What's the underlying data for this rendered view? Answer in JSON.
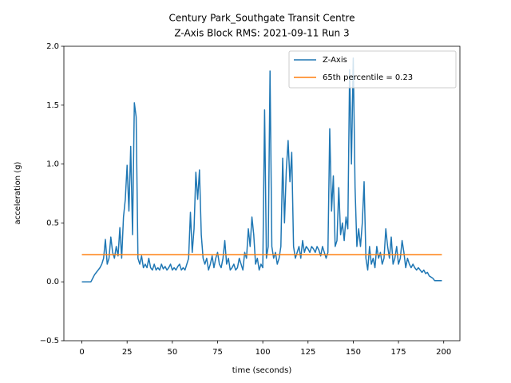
{
  "chart_data": {
    "type": "line",
    "title": [
      "Century Park_Southgate Transit Centre",
      "Z-Axis Block RMS: 2021-09-11 Run 3"
    ],
    "xlabel": "time (seconds)",
    "ylabel": "acceleration (g)",
    "xlim": [
      -9.95,
      208.95
    ],
    "ylim": [
      -0.5,
      2.0
    ],
    "xticks": [
      0,
      25,
      50,
      75,
      100,
      125,
      150,
      175,
      200
    ],
    "yticks": [
      {
        "value": -0.5,
        "label": "−0.5"
      },
      {
        "value": 0,
        "label": "0.0"
      },
      {
        "value": 0.5,
        "label": "0.5"
      },
      {
        "value": 1,
        "label": "1.0"
      },
      {
        "value": 1.5,
        "label": "1.5"
      },
      {
        "value": 2,
        "label": "2.0"
      }
    ],
    "legend": "upper right",
    "series": [
      {
        "name": "Z-Axis",
        "color": "#1f77b4",
        "x": [
          0,
          1,
          2,
          3,
          4,
          5,
          6,
          7,
          8,
          9,
          10,
          11,
          12,
          13,
          14,
          15,
          16,
          17,
          18,
          19,
          20,
          21,
          22,
          23,
          24,
          25,
          26,
          27,
          28,
          29,
          30,
          31,
          32,
          33,
          34,
          35,
          36,
          37,
          38,
          39,
          40,
          41,
          42,
          43,
          44,
          45,
          46,
          47,
          48,
          49,
          50,
          51,
          52,
          53,
          54,
          55,
          56,
          57,
          58,
          59,
          60,
          61,
          62,
          63,
          64,
          65,
          66,
          67,
          68,
          69,
          70,
          71,
          72,
          73,
          74,
          75,
          76,
          77,
          78,
          79,
          80,
          81,
          82,
          83,
          84,
          85,
          86,
          87,
          88,
          89,
          90,
          91,
          92,
          93,
          94,
          95,
          96,
          97,
          98,
          99,
          100,
          101,
          102,
          103,
          104,
          105,
          106,
          107,
          108,
          109,
          110,
          111,
          112,
          113,
          114,
          115,
          116,
          117,
          118,
          119,
          120,
          121,
          122,
          123,
          124,
          125,
          126,
          127,
          128,
          129,
          130,
          131,
          132,
          133,
          134,
          135,
          136,
          137,
          138,
          139,
          140,
          141,
          142,
          143,
          144,
          145,
          146,
          147,
          148,
          149,
          150,
          151,
          152,
          153,
          154,
          155,
          156,
          157,
          158,
          159,
          160,
          161,
          162,
          163,
          164,
          165,
          166,
          167,
          168,
          169,
          170,
          171,
          172,
          173,
          174,
          175,
          176,
          177,
          178,
          179,
          180,
          181,
          182,
          183,
          184,
          185,
          186,
          187,
          188,
          189,
          190,
          191,
          192,
          193,
          194,
          195,
          196,
          197,
          198,
          199
        ],
        "values": [
          0,
          0,
          0,
          0,
          0,
          0,
          0.03,
          0.06,
          0.08,
          0.1,
          0.12,
          0.15,
          0.2,
          0.36,
          0.15,
          0.2,
          0.38,
          0.25,
          0.2,
          0.3,
          0.22,
          0.46,
          0.2,
          0.55,
          0.7,
          0.99,
          0.6,
          1.15,
          0.4,
          1.52,
          1.4,
          0.2,
          0.15,
          0.22,
          0.12,
          0.15,
          0.12,
          0.2,
          0.12,
          0.1,
          0.15,
          0.1,
          0.12,
          0.1,
          0.15,
          0.11,
          0.13,
          0.1,
          0.12,
          0.15,
          0.1,
          0.12,
          0.1,
          0.13,
          0.15,
          0.1,
          0.12,
          0.1,
          0.15,
          0.2,
          0.59,
          0.25,
          0.45,
          0.93,
          0.7,
          0.95,
          0.4,
          0.2,
          0.15,
          0.2,
          0.1,
          0.15,
          0.22,
          0.12,
          0.2,
          0.25,
          0.15,
          0.12,
          0.2,
          0.35,
          0.15,
          0.2,
          0.1,
          0.12,
          0.15,
          0.1,
          0.12,
          0.2,
          0.15,
          0.1,
          0.25,
          0.2,
          0.45,
          0.3,
          0.55,
          0.4,
          0.15,
          0.2,
          0.1,
          0.15,
          0.12,
          1.46,
          0.2,
          0.3,
          1.79,
          0.3,
          0.2,
          0.25,
          0.15,
          0.2,
          0.3,
          1.05,
          0.5,
          0.95,
          1.2,
          0.85,
          1.1,
          0.3,
          0.2,
          0.25,
          0.3,
          0.2,
          0.35,
          0.25,
          0.3,
          0.28,
          0.25,
          0.3,
          0.28,
          0.25,
          0.3,
          0.27,
          0.22,
          0.3,
          0.25,
          0.2,
          0.25,
          1.3,
          0.6,
          0.9,
          0.3,
          0.35,
          0.8,
          0.4,
          0.5,
          0.35,
          0.55,
          0.45,
          1.8,
          1.0,
          1.9,
          0.8,
          0.3,
          0.45,
          0.3,
          0.5,
          0.85,
          0.2,
          0.1,
          0.3,
          0.15,
          0.2,
          0.12,
          0.3,
          0.2,
          0.25,
          0.15,
          0.2,
          0.45,
          0.3,
          0.2,
          0.38,
          0.15,
          0.2,
          0.3,
          0.15,
          0.2,
          0.35,
          0.25,
          0.12,
          0.2,
          0.15,
          0.12,
          0.15,
          0.12,
          0.1,
          0.12,
          0.1,
          0.08,
          0.1,
          0.07,
          0.08,
          0.05,
          0.04,
          0.03,
          0.01,
          0.01,
          0.01,
          0.01,
          0.01
        ]
      },
      {
        "name": "65th percentile = 0.23",
        "color": "#ff7f0e",
        "x": [
          0,
          199
        ],
        "values": [
          0.23,
          0.23
        ]
      }
    ]
  }
}
